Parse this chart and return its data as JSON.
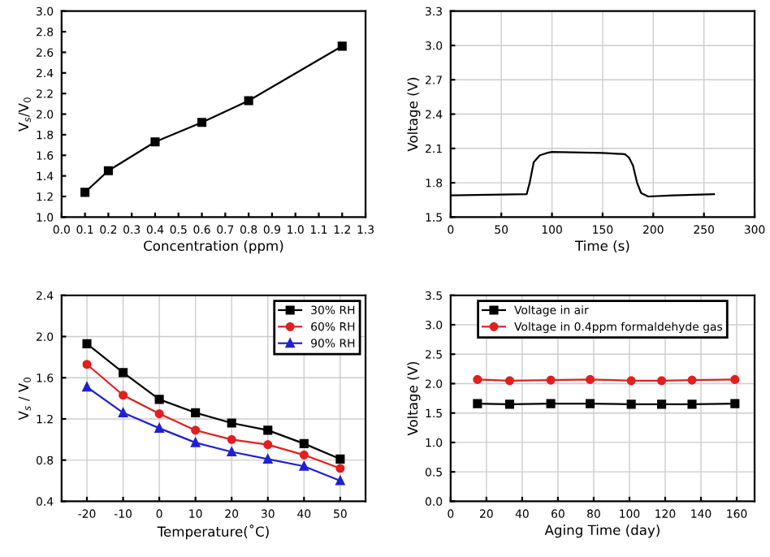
{
  "chart_data": [
    {
      "type": "line",
      "xlabel": "Concentration (ppm)",
      "ylabel": "V$_{s}$/V$_{0}$",
      "x": [
        0.1,
        0.2,
        0.4,
        0.6,
        0.8,
        1.2
      ],
      "series": [
        {
          "color": "#000000",
          "values": [
            1.24,
            1.45,
            1.73,
            1.92,
            2.13,
            2.66
          ],
          "marker": "square"
        }
      ],
      "xlim": [
        0,
        1.3
      ],
      "xticks": [
        {
          "value": 0,
          "label": "0.0"
        },
        0.1,
        0.2,
        0.3,
        0.4,
        0.5,
        0.6,
        0.7,
        0.8,
        0.9,
        {
          "value": 1,
          "label": "1.0"
        },
        1.1,
        1.2,
        1.3
      ],
      "ylim": [
        1.0,
        3.0
      ],
      "yticks": [
        {
          "value": 1,
          "label": "1.0"
        },
        1.2,
        1.4,
        1.6,
        1.8,
        {
          "value": 2,
          "label": "2.0"
        },
        2.2,
        2.4,
        2.6,
        2.8,
        {
          "value": 3,
          "label": "3.0"
        }
      ],
      "grid": false,
      "legend": false
    },
    {
      "type": "line",
      "xlabel": "Time (s)",
      "ylabel": "Voltage (V)",
      "x": [
        0,
        75,
        78,
        82,
        88,
        95,
        100,
        150,
        172,
        176,
        180,
        184,
        188,
        195,
        220,
        260
      ],
      "series": [
        {
          "color": "#000000",
          "values": [
            1.69,
            1.7,
            1.8,
            1.98,
            2.04,
            2.06,
            2.07,
            2.06,
            2.05,
            2.02,
            1.95,
            1.8,
            1.71,
            1.68,
            1.69,
            1.7
          ],
          "marker": "none"
        }
      ],
      "xlim": [
        0,
        300
      ],
      "xticks": [
        0,
        50,
        100,
        150,
        200,
        250,
        300
      ],
      "ylim": [
        1.5,
        3.3
      ],
      "yticks": [
        1.5,
        1.8,
        2.1,
        2.4,
        2.7,
        {
          "value": 3,
          "label": "3.0"
        },
        3.3
      ],
      "grid": true,
      "legend": false
    },
    {
      "type": "line",
      "xlabel": "Temperature(˚C)",
      "ylabel": "V$_{s}$ / V$_{0}$",
      "x": [
        -20,
        -10,
        0,
        10,
        20,
        30,
        40,
        50
      ],
      "series": [
        {
          "name": "30% RH",
          "color": "#000000",
          "marker": "square",
          "values": [
            1.93,
            1.65,
            1.39,
            1.26,
            1.16,
            1.09,
            0.96,
            0.81
          ]
        },
        {
          "name": "60% RH",
          "color": "#e02020",
          "marker": "circle",
          "values": [
            1.73,
            1.43,
            1.25,
            1.09,
            1.0,
            0.95,
            0.85,
            0.72
          ]
        },
        {
          "name": "90% RH",
          "color": "#2020d0",
          "marker": "triangle",
          "values": [
            1.51,
            1.26,
            1.11,
            0.97,
            0.88,
            0.81,
            0.74,
            0.6
          ]
        }
      ],
      "xlim": [
        -27,
        57
      ],
      "xticks": [
        -20,
        -10,
        0,
        10,
        20,
        30,
        40,
        50
      ],
      "ylim": [
        0.4,
        2.4
      ],
      "yticks": [
        0.4,
        0.8,
        1.2,
        1.6,
        {
          "value": 2,
          "label": "2.0"
        },
        2.4
      ],
      "grid": true,
      "legend": "top right"
    },
    {
      "type": "line",
      "xlabel": "Aging Time (day)",
      "ylabel": "Voltage (V)",
      "x": [
        15,
        33,
        56,
        78,
        101,
        118,
        135,
        159
      ],
      "series": [
        {
          "name": "Voltage in air",
          "color": "#000000",
          "marker": "square",
          "values": [
            1.66,
            1.65,
            1.66,
            1.66,
            1.65,
            1.65,
            1.65,
            1.66
          ]
        },
        {
          "name": "Voltage in 0.4ppm formaldehyde gas",
          "color": "#e02020",
          "marker": "circle",
          "values": [
            2.07,
            2.05,
            2.06,
            2.07,
            2.05,
            2.05,
            2.06,
            2.07
          ]
        }
      ],
      "xlim": [
        0,
        170
      ],
      "xticks": [
        0,
        20,
        40,
        60,
        80,
        100,
        120,
        140,
        160
      ],
      "ylim": [
        0,
        3.5
      ],
      "yticks": [
        {
          "value": 0,
          "label": "0.0"
        },
        0.5,
        {
          "value": 1,
          "label": "1.0"
        },
        1.5,
        {
          "value": 2,
          "label": "2.0"
        },
        2.5,
        {
          "value": 3,
          "label": "3.0"
        },
        3.5
      ],
      "grid": true,
      "legend": "top center"
    }
  ]
}
